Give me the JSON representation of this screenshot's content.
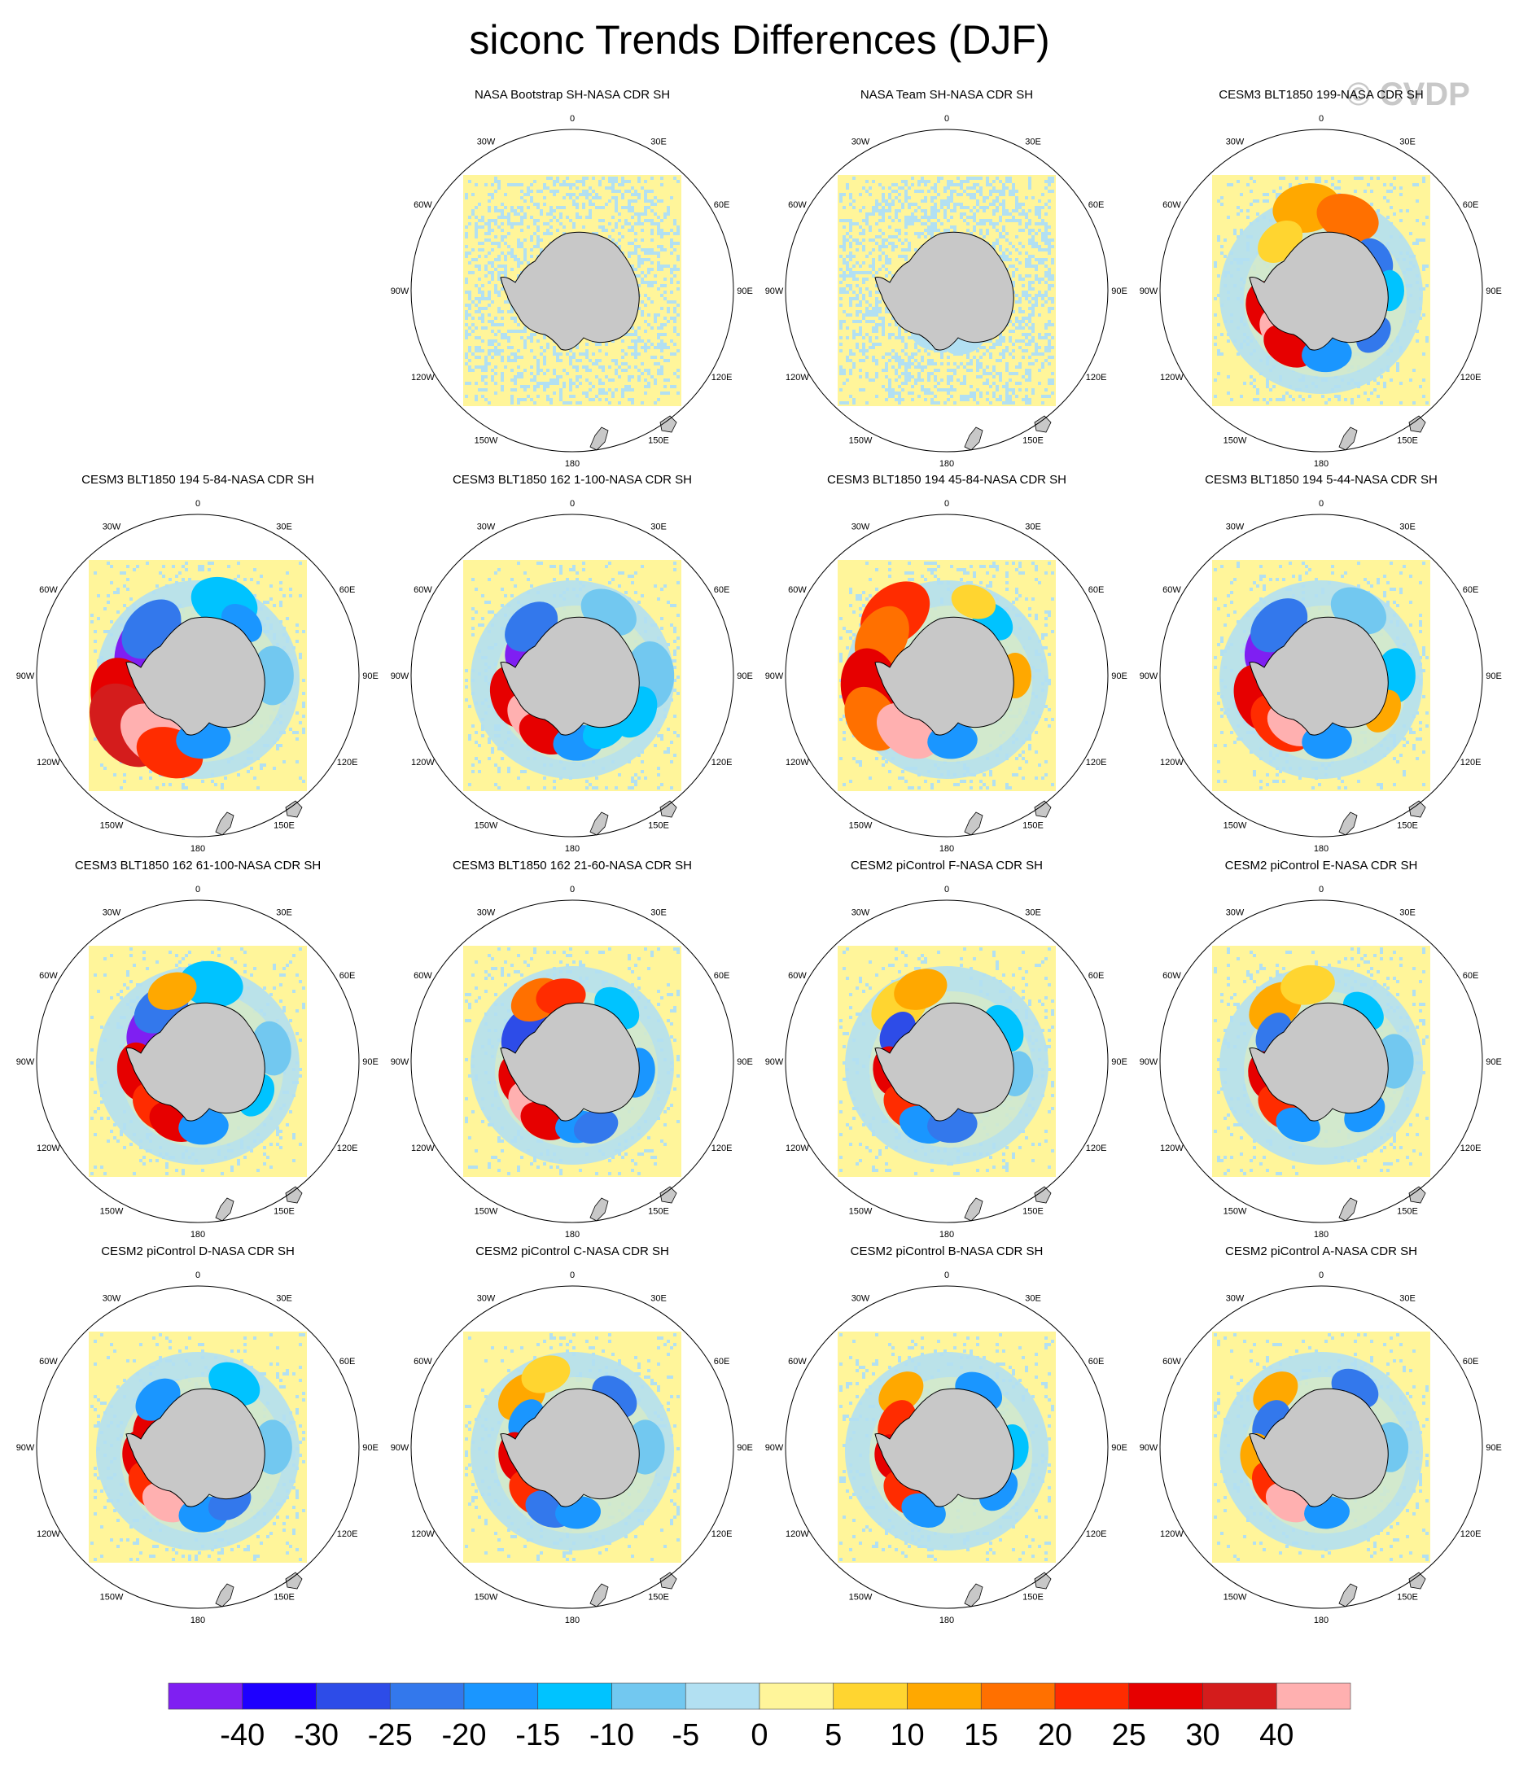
{
  "title": "siconc Trends Differences (DJF)",
  "watermark": "© CVDP",
  "ring_labels": [
    "0",
    "30E",
    "60E",
    "90E",
    "120E",
    "150E",
    "180",
    "150W",
    "120W",
    "90W",
    "60W",
    "30W"
  ],
  "colors": {
    "bins": [
      "#7f1ff2",
      "#1e00ff",
      "#2d4ce8",
      "#3378ec",
      "#1a96ff",
      "#00c3ff",
      "#72c8f0",
      "#b2e0f2",
      "#fff59a",
      "#ffd530",
      "#ffa800",
      "#ff7000",
      "#ff2c00",
      "#e60000",
      "#d41c1c",
      "#ffb0b0"
    ],
    "land": "#c8c8c8",
    "coast": "#000000"
  },
  "chart_data": {
    "type": "heatmap",
    "projection": "south-polar-stereographic",
    "colorbar": {
      "labels": [
        "-40",
        "-30",
        "-25",
        "-20",
        "-15",
        "-10",
        "-5",
        "0",
        "5",
        "10",
        "15",
        "20",
        "25",
        "30",
        "40"
      ],
      "levels": [
        -40,
        -30,
        -25,
        -20,
        -15,
        -10,
        -5,
        0,
        5,
        10,
        15,
        20,
        25,
        30,
        40
      ]
    },
    "panels": [
      {
        "title": "NASA Bootstrap SH-NASA CDR SH"
      },
      {
        "title": "NASA Team SH-NASA CDR SH"
      },
      {
        "title": "CESM3 BLT1850 199-NASA CDR SH"
      },
      {
        "title": "CESM3 BLT1850 194 5-84-NASA CDR SH"
      },
      {
        "title": "CESM3 BLT1850 162 1-100-NASA CDR SH"
      },
      {
        "title": "CESM3 BLT1850 194 45-84-NASA CDR SH"
      },
      {
        "title": "CESM3 BLT1850 194 5-44-NASA CDR SH"
      },
      {
        "title": "CESM3 BLT1850 162 61-100-NASA CDR SH"
      },
      {
        "title": "CESM3 BLT1850 162 21-60-NASA CDR SH"
      },
      {
        "title": "CESM2 piControl F-NASA CDR SH"
      },
      {
        "title": "CESM2 piControl E-NASA CDR SH"
      },
      {
        "title": "CESM2 piControl D-NASA CDR SH"
      },
      {
        "title": "CESM2 piControl C-NASA CDR SH"
      },
      {
        "title": "CESM2 piControl B-NASA CDR SH"
      },
      {
        "title": "CESM2 piControl A-NASA CDR SH"
      }
    ]
  }
}
